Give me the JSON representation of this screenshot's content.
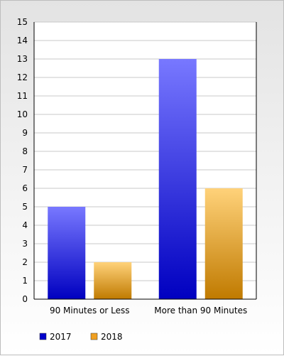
{
  "chart_data": {
    "type": "bar",
    "title": "",
    "xlabel": "",
    "ylabel": "",
    "categories": [
      "90 Minutes or Less",
      "More than 90 Minutes"
    ],
    "series": [
      {
        "name": "2017",
        "values": [
          5,
          13
        ],
        "color_light": "#7878ff",
        "color_dark": "#0000c0",
        "legend_color": "#0000cc"
      },
      {
        "name": "2018",
        "values": [
          2,
          6
        ],
        "color_light": "#ffd27a",
        "color_dark": "#c07a00",
        "legend_color": "#f0a020"
      }
    ],
    "ylim": [
      0,
      15
    ],
    "yticks": [
      0,
      1,
      2,
      3,
      4,
      5,
      6,
      7,
      8,
      9,
      10,
      11,
      12,
      13,
      14,
      15
    ],
    "grid": true,
    "legend_position": "bottom-left"
  }
}
